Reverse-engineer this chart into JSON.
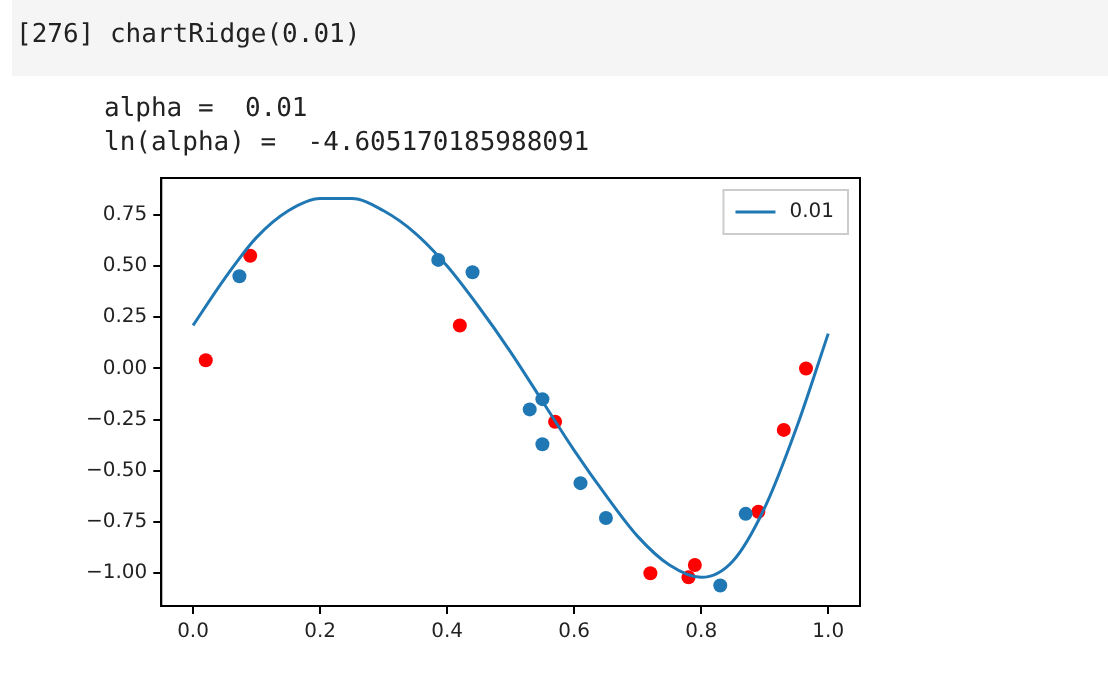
{
  "chart_data": {
    "type": "scatter",
    "annotations": [
      "[276] chartRidge(0.01)",
      "alpha =  0.01",
      "ln(alpha) =  -4.605170185988091"
    ],
    "xlim": [
      -0.05,
      1.05
    ],
    "xticks": [
      {
        "value": 0,
        "label": "0.0"
      },
      {
        "value": 0.2,
        "label": "0.2"
      },
      {
        "value": 0.4,
        "label": "0.4"
      },
      {
        "value": 0.6,
        "label": "0.6"
      },
      {
        "value": 0.8,
        "label": "0.8"
      },
      {
        "value": 1,
        "label": "1.0"
      }
    ],
    "ylim": [
      -1.16,
      0.93
    ],
    "yticks": [
      {
        "value": -1,
        "label": "−1.00"
      },
      {
        "value": -0.75,
        "label": "−0.75"
      },
      {
        "value": -0.5,
        "label": "−0.50"
      },
      {
        "value": -0.25,
        "label": "−0.25"
      },
      {
        "value": 0,
        "label": "0.00"
      },
      {
        "value": 0.25,
        "label": "0.25"
      },
      {
        "value": 0.5,
        "label": "0.50"
      },
      {
        "value": 0.75,
        "label": "0.75"
      }
    ],
    "grid": false,
    "legend": "top right",
    "marker": "circle",
    "series": [
      {
        "type": "line",
        "name": "0.01",
        "color": "#1f77b4",
        "marker": "none",
        "line_style": "solid",
        "x": [
          0,
          0.05,
          0.1,
          0.15,
          0.2,
          0.25,
          0.3,
          0.35,
          0.4,
          0.45,
          0.5,
          0.55,
          0.6,
          0.65,
          0.7,
          0.75,
          0.8,
          0.85,
          0.9,
          0.95,
          1.0
        ],
        "values": [
          0.21,
          0.44,
          0.64,
          0.77,
          0.83,
          0.83,
          0.77,
          0.66,
          0.5,
          0.3,
          0.08,
          -0.16,
          -0.4,
          -0.62,
          -0.82,
          -0.96,
          -1.02,
          -0.94,
          -0.68,
          -0.29,
          0.17
        ]
      },
      {
        "type": "scatter",
        "color": "#1f77b4",
        "x": [
          0.073,
          0.386,
          0.44,
          0.53,
          0.55,
          0.55,
          0.61,
          0.65,
          0.87,
          0.83
        ],
        "values": [
          0.45,
          0.53,
          0.47,
          -0.2,
          -0.15,
          -0.37,
          -0.56,
          -0.73,
          -0.71,
          -1.06
        ]
      },
      {
        "type": "scatter",
        "color": "#ff0000",
        "x": [
          0.02,
          0.09,
          0.42,
          0.57,
          0.72,
          0.78,
          0.79,
          0.89,
          0.93,
          0.965
        ],
        "values": [
          0.04,
          0.55,
          0.21,
          -0.26,
          -1.0,
          -1.02,
          -0.96,
          -0.7,
          -0.3,
          0.0
        ]
      }
    ]
  }
}
